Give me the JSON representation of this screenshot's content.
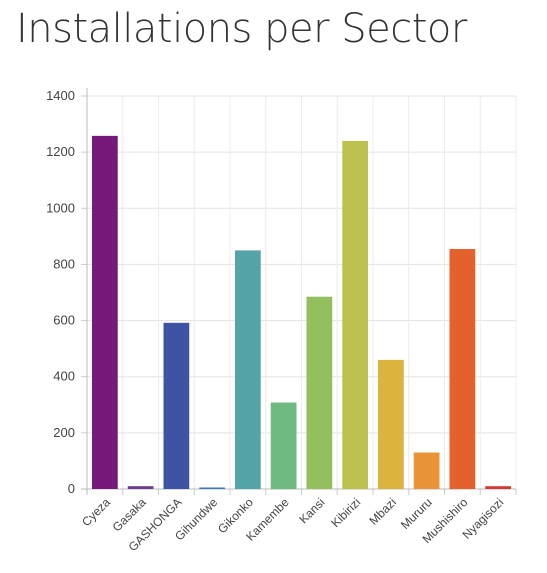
{
  "title": "Installations per Sector",
  "chart_data": {
    "type": "bar",
    "title": "Installations per Sector",
    "xlabel": "",
    "ylabel": "",
    "ylim": [
      0,
      1400
    ],
    "yticks": [
      0,
      200,
      400,
      600,
      800,
      1000,
      1200,
      1400
    ],
    "grid": true,
    "categories": [
      "Cyeza",
      "Gasaka",
      "GASHONGA",
      "Gihundwe",
      "Gikonko",
      "Kamembe",
      "Kansi",
      "Kibirizi",
      "Mbazi",
      "Mururu",
      "Mushishiro",
      "Nyagisozi"
    ],
    "values": [
      1258,
      10,
      592,
      4,
      850,
      308,
      685,
      1240,
      460,
      130,
      855,
      10
    ],
    "colors": [
      "#75197a",
      "#6a3d8f",
      "#3f53a4",
      "#3a7ab8",
      "#55a4a8",
      "#6fba80",
      "#93c05c",
      "#bcc24d",
      "#dcb33c",
      "#e99436",
      "#e4602c",
      "#d23a32"
    ]
  }
}
